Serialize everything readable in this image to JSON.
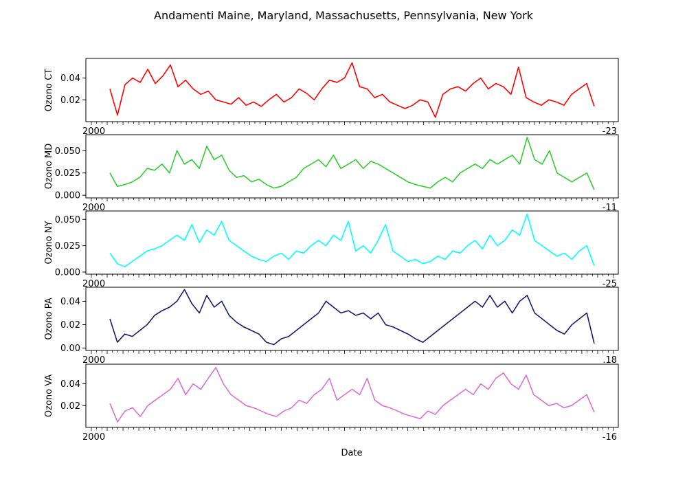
{
  "figure_title": "Andamenti Maine, Maryland, Massachusetts, Pennsylvania, New York",
  "xlabel": "Date",
  "chart_data": [
    {
      "type": "line",
      "ylabel": "Ozono CT",
      "color": "#ff0000",
      "ylim": [
        0.0,
        0.058
      ],
      "yticks": [
        0.02,
        0.04
      ],
      "ytick_labels": [
        "0.02",
        "0.04"
      ],
      "x_range": [
        "2000-01-01",
        "2002-12-31"
      ],
      "xtick_first": "2000",
      "xtick_last": "-23",
      "x_tick_count": 100,
      "sample_values": [
        0.03,
        0.006,
        0.034,
        0.04,
        0.036,
        0.048,
        0.035,
        0.042,
        0.052,
        0.032,
        0.038,
        0.03,
        0.025,
        0.028,
        0.02,
        0.018,
        0.016,
        0.022,
        0.015,
        0.018,
        0.014,
        0.02,
        0.025,
        0.018,
        0.022,
        0.03,
        0.026,
        0.02,
        0.03,
        0.038,
        0.036,
        0.04,
        0.054,
        0.032,
        0.03,
        0.022,
        0.025,
        0.018,
        0.015,
        0.012,
        0.015,
        0.02,
        0.018,
        0.004,
        0.025,
        0.03,
        0.032,
        0.028,
        0.035,
        0.04,
        0.03,
        0.035,
        0.032,
        0.025,
        0.05,
        0.022,
        0.018,
        0.015,
        0.02,
        0.018,
        0.015,
        0.025,
        0.03,
        0.035,
        0.014
      ]
    },
    {
      "type": "line",
      "ylabel": "Ozono MD",
      "color": "#32cd32",
      "ylim": [
        -0.003,
        0.068
      ],
      "yticks": [
        0.0,
        0.025,
        0.05
      ],
      "ytick_labels": [
        "0.000",
        "0.025",
        "0.050"
      ],
      "x_range": [
        "2000-01-01",
        "2002-12-31"
      ],
      "xtick_first": "2000",
      "xtick_last": "-11",
      "x_tick_count": 100,
      "sample_values": [
        0.025,
        0.01,
        0.012,
        0.015,
        0.02,
        0.03,
        0.028,
        0.035,
        0.025,
        0.05,
        0.035,
        0.04,
        0.03,
        0.055,
        0.04,
        0.045,
        0.028,
        0.02,
        0.022,
        0.015,
        0.018,
        0.012,
        0.008,
        0.01,
        0.015,
        0.02,
        0.03,
        0.035,
        0.04,
        0.032,
        0.045,
        0.03,
        0.035,
        0.04,
        0.03,
        0.038,
        0.035,
        0.03,
        0.025,
        0.02,
        0.015,
        0.012,
        0.01,
        0.008,
        0.015,
        0.02,
        0.015,
        0.025,
        0.03,
        0.035,
        0.03,
        0.04,
        0.035,
        0.04,
        0.045,
        0.035,
        0.065,
        0.04,
        0.035,
        0.05,
        0.025,
        0.02,
        0.015,
        0.02,
        0.025,
        0.006
      ]
    },
    {
      "type": "line",
      "ylabel": "Ozono NY",
      "color": "#00ffff",
      "ylim": [
        -0.002,
        0.058
      ],
      "yticks": [
        0.0,
        0.025,
        0.05
      ],
      "ytick_labels": [
        "0.000",
        "0.025",
        "0.050"
      ],
      "x_range": [
        "2000-01-01",
        "2002-12-31"
      ],
      "xtick_first": "2000",
      "xtick_last": "-25",
      "x_tick_count": 100,
      "sample_values": [
        0.018,
        0.008,
        0.005,
        0.01,
        0.015,
        0.02,
        0.022,
        0.025,
        0.03,
        0.035,
        0.03,
        0.045,
        0.028,
        0.04,
        0.035,
        0.048,
        0.03,
        0.025,
        0.02,
        0.015,
        0.012,
        0.01,
        0.015,
        0.018,
        0.012,
        0.02,
        0.018,
        0.025,
        0.03,
        0.025,
        0.035,
        0.03,
        0.048,
        0.02,
        0.025,
        0.018,
        0.03,
        0.045,
        0.02,
        0.015,
        0.01,
        0.012,
        0.008,
        0.01,
        0.015,
        0.012,
        0.02,
        0.018,
        0.025,
        0.03,
        0.022,
        0.035,
        0.025,
        0.03,
        0.04,
        0.035,
        0.055,
        0.03,
        0.025,
        0.02,
        0.015,
        0.018,
        0.012,
        0.02,
        0.025,
        0.006
      ]
    },
    {
      "type": "line",
      "ylabel": "Ozono PA",
      "color": "#191970",
      "ylim": [
        -0.002,
        0.052
      ],
      "yticks": [
        0.0,
        0.02,
        0.04
      ],
      "ytick_labels": [
        "0.00",
        "0.02",
        "0.04"
      ],
      "x_range": [
        "2000-01-01",
        "2002-12-31"
      ],
      "xtick_first": "2000",
      "xtick_last": ".18",
      "x_tick_count": 100,
      "sample_values": [
        0.025,
        0.005,
        0.012,
        0.01,
        0.015,
        0.02,
        0.028,
        0.032,
        0.035,
        0.04,
        0.05,
        0.038,
        0.03,
        0.045,
        0.035,
        0.04,
        0.028,
        0.022,
        0.018,
        0.015,
        0.012,
        0.005,
        0.003,
        0.008,
        0.01,
        0.015,
        0.02,
        0.025,
        0.03,
        0.04,
        0.035,
        0.03,
        0.032,
        0.028,
        0.03,
        0.025,
        0.03,
        0.02,
        0.018,
        0.015,
        0.012,
        0.008,
        0.005,
        0.01,
        0.015,
        0.02,
        0.025,
        0.03,
        0.035,
        0.04,
        0.035,
        0.045,
        0.035,
        0.04,
        0.03,
        0.04,
        0.045,
        0.03,
        0.025,
        0.02,
        0.015,
        0.012,
        0.02,
        0.025,
        0.03,
        0.004
      ]
    },
    {
      "type": "line",
      "ylabel": "Ozono VA",
      "color": "#da70d6",
      "ylim": [
        0.0,
        0.058
      ],
      "yticks": [
        0.02,
        0.04
      ],
      "ytick_labels": [
        "0.02",
        "0.04"
      ],
      "x_range": [
        "2000-01-01",
        "2002-12-31"
      ],
      "xtick_first": "2000",
      "xtick_last": "-16",
      "x_tick_count": 100,
      "sample_values": [
        0.022,
        0.005,
        0.015,
        0.018,
        0.01,
        0.02,
        0.025,
        0.03,
        0.035,
        0.045,
        0.03,
        0.04,
        0.035,
        0.045,
        0.055,
        0.04,
        0.03,
        0.025,
        0.02,
        0.018,
        0.015,
        0.012,
        0.01,
        0.015,
        0.018,
        0.025,
        0.022,
        0.03,
        0.035,
        0.045,
        0.025,
        0.03,
        0.035,
        0.03,
        0.045,
        0.025,
        0.02,
        0.018,
        0.015,
        0.012,
        0.01,
        0.008,
        0.015,
        0.012,
        0.02,
        0.025,
        0.03,
        0.035,
        0.03,
        0.04,
        0.035,
        0.045,
        0.05,
        0.04,
        0.035,
        0.048,
        0.03,
        0.025,
        0.02,
        0.022,
        0.018,
        0.02,
        0.025,
        0.03,
        0.014
      ]
    }
  ]
}
